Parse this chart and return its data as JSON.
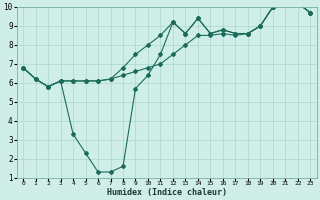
{
  "title": "",
  "xlabel": "Humidex (Indice chaleur)",
  "xlim": [
    -0.5,
    23.5
  ],
  "ylim": [
    1,
    10
  ],
  "xticks": [
    0,
    1,
    2,
    3,
    4,
    5,
    6,
    7,
    8,
    9,
    10,
    11,
    12,
    13,
    14,
    15,
    16,
    17,
    18,
    19,
    20,
    21,
    22,
    23
  ],
  "yticks": [
    1,
    2,
    3,
    4,
    5,
    6,
    7,
    8,
    9,
    10
  ],
  "bg_color": "#d0eee8",
  "line_color": "#1a6b5a",
  "grid_color": "#a8d8ce",
  "line1_x": [
    0,
    1,
    2,
    3,
    4,
    5,
    6,
    7,
    8,
    9,
    10,
    11,
    12,
    13,
    14,
    15,
    16,
    17,
    18,
    19,
    20,
    21,
    22,
    23
  ],
  "line1_y": [
    6.8,
    6.2,
    5.8,
    6.1,
    3.3,
    2.3,
    1.3,
    1.3,
    1.6,
    5.7,
    6.4,
    7.5,
    9.2,
    8.6,
    9.4,
    8.6,
    8.8,
    8.6,
    8.6,
    9.0,
    10.0,
    10.2,
    10.2,
    9.7
  ],
  "line2_x": [
    0,
    1,
    2,
    3,
    4,
    5,
    6,
    7,
    8,
    9,
    10,
    11,
    12,
    13,
    14,
    15,
    16,
    17,
    18,
    19,
    20,
    21,
    22,
    23
  ],
  "line2_y": [
    6.8,
    6.2,
    5.8,
    6.1,
    6.1,
    6.1,
    6.1,
    6.2,
    6.4,
    6.6,
    6.8,
    7.0,
    7.5,
    8.0,
    8.5,
    8.5,
    8.6,
    8.5,
    8.6,
    9.0,
    10.0,
    10.2,
    10.2,
    9.7
  ],
  "line3_x": [
    0,
    1,
    2,
    3,
    4,
    5,
    6,
    7,
    8,
    9,
    10,
    11,
    12,
    13,
    14,
    15,
    16,
    17,
    18,
    19,
    20,
    21,
    22,
    23
  ],
  "line3_y": [
    6.8,
    6.2,
    5.8,
    6.1,
    6.1,
    6.1,
    6.1,
    6.2,
    6.8,
    7.5,
    8.0,
    8.5,
    9.2,
    8.6,
    9.4,
    8.6,
    8.8,
    8.6,
    8.6,
    9.0,
    10.0,
    10.2,
    10.2,
    9.7
  ]
}
